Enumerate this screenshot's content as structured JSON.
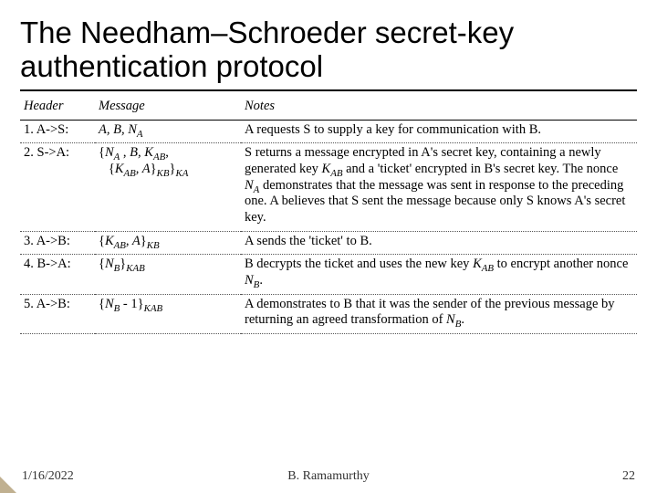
{
  "title": "The Needham–Schroeder secret-key authentication protocol",
  "columns": {
    "header": "Header",
    "message": "Message",
    "notes": "Notes"
  },
  "rows": [
    {
      "header": "1. A->S:",
      "message_html": "<i>A, B, N<sub>A</sub></i>",
      "notes_html": "A requests S to supply a key for communication with B."
    },
    {
      "header": "2. S->A:",
      "message_html": "{<i>N<sub>A</sub></i> , <i>B, K<sub>AB</sub></i>,<br>&nbsp;&nbsp;&nbsp;{<i>K<sub>AB</sub>, A</i>}<i><sub>KB</sub></i>}<i><sub>KA</sub></i>",
      "notes_html": "S returns a message encrypted in A's secret key, containing a newly generated key <i>K<sub>AB</sub></i> and a 'ticket' encrypted in B's secret key. The nonce <i>N<sub>A</sub></i> demonstrates that the message was sent in response to the preceding one. A believes that S sent the message because only S knows A's secret key."
    },
    {
      "header": "3. A->B:",
      "message_html": "{<i>K<sub>AB</sub>, A</i>}<i><sub>KB</sub></i>",
      "notes_html": "A sends the 'ticket' to B."
    },
    {
      "header": "4. B->A:",
      "message_html": "{<i>N<sub>B</sub></i>}<i><sub>KAB</sub></i>",
      "notes_html": "B decrypts the ticket and uses the new key <i>K<sub>AB</sub></i> to encrypt another nonce <i>N<sub>B</sub></i>."
    },
    {
      "header": "5. A->B:",
      "message_html": "{<i>N<sub>B</sub></i> - 1}<i><sub>KAB</sub></i>",
      "notes_html": "A demonstrates to B that it was the sender of the previous message by returning an agreed transformation of <i>N<sub>B</sub></i>."
    }
  ],
  "footer": {
    "date": "1/16/2022",
    "author": "B. Ramamurthy",
    "page": "22"
  },
  "style": {
    "title_font": "Tahoma",
    "title_size_pt": 33,
    "body_font": "Times New Roman",
    "body_size_pt": 14.5,
    "border_title_color": "#000000",
    "row_divider_style": "dotted",
    "corner_color": "#c0b090"
  }
}
